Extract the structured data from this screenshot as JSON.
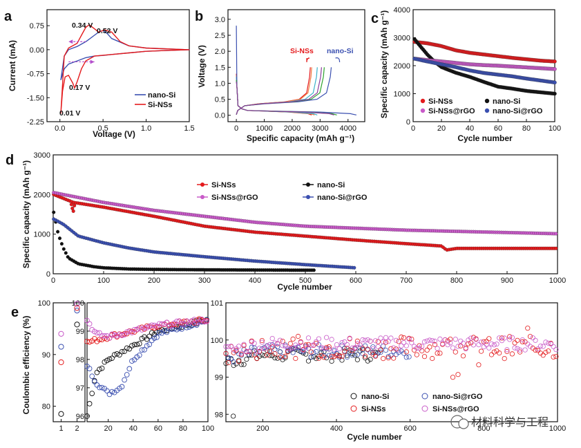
{
  "colors": {
    "red": "#e41a1c",
    "black": "#111111",
    "magenta": "#c85ac8",
    "blue": "#3a4fb0",
    "arrow": "#b44fcc"
  },
  "watermark": "材料科学与工程",
  "chart_data": [
    {
      "id": "a",
      "panel_label": "a",
      "type": "line",
      "title": "",
      "xlabel": "Voltage (V)",
      "ylabel": "Current (mA)",
      "xlim": [
        -0.15,
        1.5
      ],
      "ylim": [
        -2.25,
        1.25
      ],
      "xticks": [
        "0.0",
        "0.5",
        "1.0",
        "1.5"
      ],
      "yticks": [
        "0.75",
        "0.00",
        "-0.75",
        "-1.50",
        "-2.25"
      ],
      "annotations": [
        "0.34 V",
        "0.52 V",
        "0.17 V",
        "0.01 V"
      ],
      "legend": [
        "nano-Si",
        "Si-NSs"
      ],
      "series": [
        {
          "name": "nano-Si",
          "color": "#3a4fb0",
          "x": [
            0.01,
            0.05,
            0.1,
            0.15,
            0.2,
            0.3,
            0.4,
            0.5,
            0.6,
            0.8,
            1.0,
            1.2,
            1.5,
            1.2,
            1.0,
            0.8,
            0.6,
            0.55,
            0.5,
            0.45,
            0.4,
            0.3,
            0.2,
            0.15,
            0.1,
            0.05,
            0.01
          ],
          "y": [
            -0.95,
            -0.6,
            -0.45,
            -0.4,
            -0.35,
            -0.25,
            -0.2,
            -0.18,
            -0.15,
            -0.1,
            -0.05,
            -0.03,
            0.0,
            0.03,
            0.05,
            0.12,
            0.35,
            0.5,
            0.6,
            0.55,
            0.45,
            0.25,
            0.1,
            0.05,
            0.0,
            -0.2,
            -0.95
          ]
        },
        {
          "name": "Si-NSs",
          "color": "#e41a1c",
          "x": [
            0.01,
            0.03,
            0.06,
            0.1,
            0.15,
            0.17,
            0.2,
            0.25,
            0.3,
            0.4,
            0.6,
            0.8,
            1.0,
            1.2,
            1.5,
            1.2,
            1.0,
            0.8,
            0.7,
            0.6,
            0.52,
            0.45,
            0.34,
            0.3,
            0.25,
            0.2,
            0.1,
            0.05,
            0.01
          ],
          "y": [
            -2.0,
            -1.3,
            -0.85,
            -0.8,
            -1.05,
            -1.2,
            -1.0,
            -0.6,
            -0.35,
            -0.2,
            -0.15,
            -0.1,
            -0.05,
            -0.03,
            0.0,
            0.03,
            0.05,
            0.12,
            0.25,
            0.55,
            0.62,
            0.55,
            0.78,
            0.7,
            0.45,
            0.2,
            0.05,
            -0.2,
            -2.0
          ]
        }
      ]
    },
    {
      "id": "b",
      "panel_label": "b",
      "type": "line",
      "title": "",
      "xlabel": "Specific capacity (mAh g⁻¹)",
      "ylabel": "Voltage (V)",
      "xlim": [
        -300,
        4600
      ],
      "ylim": [
        -0.2,
        3.3
      ],
      "xticks": [
        "0",
        "1000",
        "2000",
        "3000",
        "4000"
      ],
      "yticks": [
        "0.0",
        "0.5",
        "1.0",
        "1.5",
        "2.0",
        "2.5",
        "3.0"
      ],
      "annotations": [
        "Si-NSs",
        "nano-Si"
      ],
      "series": [
        {
          "name": "Si-NSs 1st",
          "color": "#e41a1c",
          "discharge_end": 2700,
          "charge_end": 2650
        },
        {
          "name": "Si-NSs 2nd",
          "color": "#f07b3c",
          "discharge_end": 2800,
          "charge_end": 2700
        },
        {
          "name": "Si-NSs 3rd",
          "color": "#3ab0c8",
          "discharge_end": 2900,
          "charge_end": 2900
        },
        {
          "name": "nano-Si 1st",
          "color": "#3a4fb0",
          "discharge_end": 4300,
          "charge_end": 3400
        },
        {
          "name": "nano-Si 2nd",
          "color": "#2ca02c",
          "discharge_end": 3600,
          "charge_end": 3150
        },
        {
          "name": "nano-Si 3rd",
          "color": "#8a3a9a",
          "discharge_end": 3500,
          "charge_end": 3050
        }
      ]
    },
    {
      "id": "c",
      "panel_label": "c",
      "type": "scatter",
      "title": "",
      "xlabel": "Cycle number",
      "ylabel": "Specific capacity (mAh g⁻¹)",
      "xlim": [
        0,
        100
      ],
      "ylim": [
        0,
        4000
      ],
      "xticks": [
        "0",
        "20",
        "40",
        "60",
        "80",
        "100"
      ],
      "yticks": [
        "0",
        "1000",
        "2000",
        "3000",
        "4000"
      ],
      "legend": [
        "Si-NSs",
        "nano-Si",
        "Si-NSs@rGO",
        "nano-Si@rGO"
      ],
      "series": [
        {
          "name": "Si-NSs",
          "color": "#e41a1c",
          "x": [
            1,
            10,
            20,
            30,
            40,
            50,
            60,
            70,
            80,
            90,
            100
          ],
          "y": [
            2850,
            2800,
            2700,
            2550,
            2460,
            2400,
            2340,
            2280,
            2230,
            2180,
            2150
          ]
        },
        {
          "name": "nano-Si",
          "color": "#111111",
          "x": [
            1,
            5,
            10,
            15,
            20,
            25,
            30,
            40,
            50,
            60,
            70,
            80,
            90,
            100
          ],
          "y": [
            2950,
            2700,
            2400,
            2150,
            1950,
            1850,
            1750,
            1600,
            1420,
            1250,
            1180,
            1100,
            1050,
            1000
          ]
        },
        {
          "name": "Si-NSs@rGO",
          "color": "#c85ac8",
          "x": [
            1,
            10,
            20,
            30,
            40,
            50,
            60,
            70,
            80,
            90,
            100
          ],
          "y": [
            2250,
            2200,
            2150,
            2100,
            2050,
            2020,
            2000,
            1970,
            1940,
            1910,
            1880
          ]
        },
        {
          "name": "nano-Si@rGO",
          "color": "#3a4fb0",
          "x": [
            1,
            10,
            20,
            30,
            40,
            50,
            60,
            70,
            80,
            90,
            100
          ],
          "y": [
            2250,
            2150,
            2050,
            1950,
            1830,
            1740,
            1680,
            1620,
            1540,
            1470,
            1400
          ]
        }
      ]
    },
    {
      "id": "d",
      "panel_label": "d",
      "type": "scatter",
      "title": "",
      "xlabel": "Cycle number",
      "ylabel": "Specific capacity (mAh g⁻¹)",
      "xlim": [
        0,
        1000
      ],
      "ylim": [
        0,
        3000
      ],
      "xticks": [
        "0",
        "100",
        "200",
        "300",
        "400",
        "500",
        "600",
        "700",
        "800",
        "900",
        "1000"
      ],
      "yticks": [
        "0",
        "1000",
        "2000",
        "3000"
      ],
      "legend": [
        "Si-NSs",
        "nano-Si",
        "Si-NSs@rGO",
        "nano-Si@rGO"
      ],
      "series": [
        {
          "name": "Si-NSs",
          "color": "#e41a1c",
          "x": [
            1,
            40,
            100,
            200,
            300,
            400,
            500,
            600,
            700,
            770,
            780,
            800,
            900,
            1000
          ],
          "y": [
            2000,
            1800,
            1680,
            1450,
            1200,
            1050,
            950,
            850,
            760,
            700,
            600,
            640,
            640,
            640
          ]
        },
        {
          "name": "nano-Si",
          "color": "#111111",
          "x": [
            1,
            10,
            20,
            30,
            50,
            80,
            100,
            150,
            200,
            300,
            400,
            500,
            520
          ],
          "y": [
            1550,
            1000,
            650,
            400,
            250,
            180,
            150,
            120,
            110,
            100,
            95,
            90,
            90
          ]
        },
        {
          "name": "Si-NSs@rGO",
          "color": "#c85ac8",
          "x": [
            1,
            20,
            100,
            200,
            300,
            400,
            500,
            600,
            700,
            800,
            900,
            1000
          ],
          "y": [
            2050,
            2000,
            1800,
            1600,
            1450,
            1300,
            1200,
            1150,
            1100,
            1070,
            1040,
            1010
          ]
        },
        {
          "name": "nano-Si@rGO",
          "color": "#3a4fb0",
          "x": [
            1,
            20,
            50,
            100,
            150,
            200,
            300,
            400,
            500,
            600
          ],
          "y": [
            1380,
            1250,
            950,
            780,
            650,
            550,
            430,
            320,
            230,
            150
          ]
        }
      ]
    },
    {
      "id": "e",
      "panel_label": "e",
      "type": "scatter",
      "title": "",
      "xlabel": "Cycle number",
      "ylabel": "Coulombic efficiency (%)",
      "subplots": [
        {
          "xlim": [
            0.5,
            2.5
          ],
          "ylim": [
            77,
            100
          ],
          "xticks": [
            "1",
            "2"
          ],
          "yticks": [
            "80",
            "90",
            "100"
          ]
        },
        {
          "xlim": [
            3,
            100
          ],
          "ylim": [
            95.8,
            100
          ],
          "xticks": [
            "20",
            "40",
            "60",
            "80",
            "100"
          ],
          "yticks": [
            "96",
            "97",
            "98",
            "99",
            "100"
          ]
        },
        {
          "xlim": [
            100,
            1000
          ],
          "ylim": [
            97.8,
            101
          ],
          "xticks": [
            "200",
            "400",
            "600",
            "800",
            "1000"
          ],
          "yticks": [
            "98",
            "99",
            "100",
            "101"
          ]
        }
      ],
      "legend": [
        "nano-Si",
        "nano-Si@rGO",
        "Si-NSs",
        "Si-NSs@rGO"
      ],
      "series": [
        {
          "name": "nano-Si",
          "color": "#111111",
          "early": [
            78.5,
            95.8
          ],
          "trend": [
            [
              3,
              96
            ],
            [
              10,
              97.5
            ],
            [
              20,
              98
            ],
            [
              40,
              98.5
            ],
            [
              60,
              99
            ],
            [
              100,
              99.4
            ]
          ],
          "late_mean": 99.6,
          "late_end": 520
        },
        {
          "name": "nano-Si@rGO",
          "color": "#3a4fb0",
          "early": [
            91.5,
            98.5
          ],
          "trend": [
            [
              3,
              97.8
            ],
            [
              10,
              97.2
            ],
            [
              20,
              96.8
            ],
            [
              30,
              97.0
            ],
            [
              40,
              98.0
            ],
            [
              60,
              98.9
            ],
            [
              100,
              99.4
            ]
          ],
          "late_mean": 99.7,
          "late_end": 600
        },
        {
          "name": "Si-NSs",
          "color": "#e41a1c",
          "early": [
            88.5,
            99.0
          ],
          "trend": [
            [
              3,
              98.6
            ],
            [
              20,
              98.8
            ],
            [
              40,
              99.0
            ],
            [
              60,
              99.2
            ],
            [
              100,
              99.4
            ]
          ],
          "late_mean": 99.8,
          "late_end": 1000
        },
        {
          "name": "Si-NSs@rGO",
          "color": "#c85ac8",
          "early": [
            94,
            99.8
          ],
          "trend": [
            [
              3,
              99.4
            ],
            [
              10,
              98.9
            ],
            [
              20,
              98.8
            ],
            [
              40,
              99.0
            ],
            [
              60,
              99.2
            ],
            [
              100,
              99.4
            ]
          ],
          "late_mean": 99.9,
          "late_end": 1000
        }
      ]
    }
  ]
}
